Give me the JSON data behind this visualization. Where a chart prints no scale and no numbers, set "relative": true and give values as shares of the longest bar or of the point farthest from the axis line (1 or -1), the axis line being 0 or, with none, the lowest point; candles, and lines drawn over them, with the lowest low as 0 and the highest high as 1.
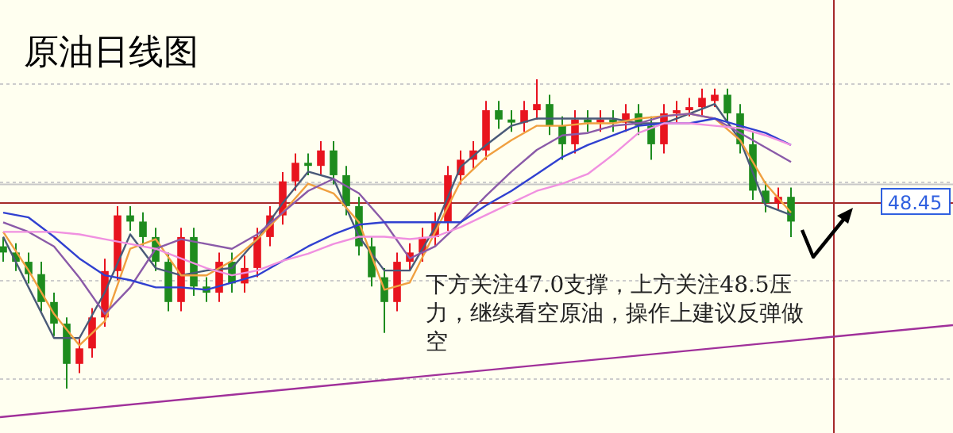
{
  "chart_data": [
    {
      "type": "candlestick",
      "title": "原油日线图",
      "relative": true,
      "grid": "y",
      "categories": [
        null,
        null,
        null,
        null,
        null,
        null,
        null,
        null,
        null,
        null,
        null,
        null,
        null,
        null,
        null,
        null,
        null,
        null,
        null,
        null,
        null,
        null,
        null,
        null,
        null,
        null,
        null,
        null,
        null,
        null,
        null,
        null,
        null,
        null,
        null,
        null,
        null,
        null,
        null,
        null,
        null,
        null,
        null,
        null,
        null,
        null,
        null,
        null,
        null,
        null,
        null,
        null,
        null,
        null,
        null,
        null,
        null,
        null,
        null,
        null,
        null,
        null,
        null
      ],
      "ohlc": [
        [
          0.46,
          0.49,
          0.41,
          0.44
        ],
        [
          0.44,
          0.47,
          0.38,
          0.41
        ],
        [
          0.41,
          0.44,
          0.34,
          0.37
        ],
        [
          0.37,
          0.41,
          0.25,
          0.28
        ],
        [
          0.28,
          0.31,
          0.17,
          0.21
        ],
        [
          0.21,
          0.23,
          0,
          0.08
        ],
        [
          0.08,
          0.16,
          0.05,
          0.13
        ],
        [
          0.13,
          0.26,
          0.1,
          0.23
        ],
        [
          0.23,
          0.42,
          0.2,
          0.38
        ],
        [
          0.38,
          0.59,
          0.35,
          0.56
        ],
        [
          0.56,
          0.59,
          0.51,
          0.54
        ],
        [
          0.54,
          0.57,
          0.46,
          0.49
        ],
        [
          0.49,
          0.52,
          0.38,
          0.41
        ],
        [
          0.41,
          0.44,
          0.25,
          0.28
        ],
        [
          0.28,
          0.52,
          0.25,
          0.49
        ],
        [
          0.49,
          0.52,
          0.3,
          0.33
        ],
        [
          0.33,
          0.36,
          0.28,
          0.31
        ],
        [
          0.31,
          0.44,
          0.28,
          0.41
        ],
        [
          0.41,
          0.44,
          0.31,
          0.34
        ],
        [
          0.34,
          0.43,
          0.31,
          0.39
        ],
        [
          0.39,
          0.52,
          0.36,
          0.49
        ],
        [
          0.49,
          0.59,
          0.46,
          0.56
        ],
        [
          0.56,
          0.7,
          0.53,
          0.67
        ],
        [
          0.67,
          0.76,
          0.64,
          0.73
        ],
        [
          0.73,
          0.76,
          0.69,
          0.72
        ],
        [
          0.72,
          0.8,
          0.69,
          0.77
        ],
        [
          0.77,
          0.8,
          0.66,
          0.69
        ],
        [
          0.69,
          0.72,
          0.56,
          0.59
        ],
        [
          0.59,
          0.62,
          0.43,
          0.46
        ],
        [
          0.46,
          0.49,
          0.33,
          0.36
        ],
        [
          0.36,
          0.39,
          0.18,
          0.28
        ],
        [
          0.28,
          0.44,
          0.25,
          0.41
        ],
        [
          0.41,
          0.47,
          0.38,
          0.44
        ],
        [
          0.44,
          0.52,
          0.41,
          0.49
        ],
        [
          0.49,
          0.57,
          0.46,
          0.54
        ],
        [
          0.54,
          0.72,
          0.51,
          0.69
        ],
        [
          0.69,
          0.77,
          0.66,
          0.74
        ],
        [
          0.74,
          0.8,
          0.71,
          0.77
        ],
        [
          0.77,
          0.93,
          0.74,
          0.9
        ],
        [
          0.9,
          0.93,
          0.84,
          0.87
        ],
        [
          0.87,
          0.9,
          0.83,
          0.86
        ],
        [
          0.86,
          0.93,
          0.83,
          0.9
        ],
        [
          0.9,
          1.0,
          0.87,
          0.92
        ],
        [
          0.92,
          0.95,
          0.82,
          0.85
        ],
        [
          0.85,
          0.88,
          0.74,
          0.79
        ],
        [
          0.79,
          0.9,
          0.76,
          0.87
        ],
        [
          0.87,
          0.9,
          0.83,
          0.86
        ],
        [
          0.86,
          0.9,
          0.83,
          0.87
        ],
        [
          0.87,
          0.9,
          0.83,
          0.86
        ],
        [
          0.86,
          0.92,
          0.83,
          0.89
        ],
        [
          0.89,
          0.92,
          0.82,
          0.85
        ],
        [
          0.85,
          0.88,
          0.74,
          0.79
        ],
        [
          0.79,
          0.92,
          0.76,
          0.89
        ],
        [
          0.89,
          0.93,
          0.86,
          0.9
        ],
        [
          0.9,
          0.94,
          0.88,
          0.91
        ],
        [
          0.91,
          0.97,
          0.88,
          0.94
        ],
        [
          0.93,
          0.97,
          0.91,
          0.95
        ],
        [
          0.95,
          0.97,
          0.86,
          0.89
        ],
        [
          0.89,
          0.92,
          0.76,
          0.79
        ],
        [
          0.79,
          0.83,
          0.61,
          0.64
        ],
        [
          0.64,
          0.67,
          0.57,
          0.6
        ],
        [
          0.6,
          0.65,
          0.58,
          0.62
        ],
        [
          0.62,
          0.65,
          0.49,
          0.54
        ]
      ],
      "ref_lines": [
        {
          "axis": "y",
          "value": 0.6,
          "color": "#a52a2a"
        },
        {
          "axis": "y",
          "value": 0.66,
          "color": "#c8c8c8"
        }
      ],
      "annotations": [
        "下方关注47.0支撑，上方关注48.5压力，继续看空原油，操作上建议反弹做空",
        "48.45"
      ]
    },
    {
      "type": "line",
      "relative": true,
      "categories": [
        null,
        null,
        null,
        null,
        null,
        null,
        null,
        null,
        null,
        null,
        null,
        null,
        null,
        null,
        null,
        null,
        null,
        null,
        null,
        null,
        null,
        null,
        null,
        null,
        null,
        null,
        null,
        null,
        null,
        null,
        null,
        null
      ],
      "series": [
        {
          "color": "#4a5a78",
          "values": [
            0.45,
            0.24,
            0.03,
            0.03,
            0.22,
            0.46,
            0.32,
            0.29,
            0.31,
            0.32,
            0.44,
            0.59,
            0.72,
            0.69,
            0.45,
            0.31,
            0.31,
            0.49,
            0.74,
            0.83,
            0.91,
            0.94,
            0.94,
            0.94,
            0.94,
            0.92,
            0.92,
            0.96,
            1,
            0.85,
            0.58,
            0.54
          ]
        },
        {
          "color": "#f0a040",
          "values": [
            0.47,
            0.31,
            0.13,
            0,
            0.1,
            0.4,
            0.44,
            0.29,
            0.29,
            0.35,
            0.44,
            0.55,
            0.67,
            0.63,
            0.51,
            0.23,
            0.26,
            0.47,
            0.68,
            0.78,
            0.85,
            0.91,
            0.91,
            0.92,
            0.92,
            0.94,
            0.95,
            0.96,
            0.94,
            0.85,
            0.67,
            0.55
          ]
        },
        {
          "color": "#8a5aa8",
          "values": [
            0.51,
            0.47,
            0.41,
            0.28,
            0.13,
            0.24,
            0.4,
            0.44,
            0.42,
            0.4,
            0.46,
            0.55,
            0.64,
            0.69,
            0.63,
            0.51,
            0.36,
            0.41,
            0.51,
            0.62,
            0.72,
            0.81,
            0.87,
            0.88,
            0.91,
            0.92,
            0.95,
            0.96,
            0.94,
            0.88,
            0.82,
            0.76
          ]
        },
        {
          "color": "#3040d0",
          "values": [
            0.55,
            0.53,
            0.45,
            0.36,
            0.29,
            0.27,
            0.24,
            0.24,
            0.23,
            0.26,
            0.29,
            0.35,
            0.41,
            0.46,
            0.5,
            0.51,
            0.51,
            0.51,
            0.51,
            0.58,
            0.64,
            0.71,
            0.78,
            0.83,
            0.87,
            0.91,
            0.92,
            0.92,
            0.94,
            0.91,
            0.88,
            0.83
          ]
        },
        {
          "color": "#f090e0",
          "values": [
            0.47,
            0.47,
            0.47,
            0.46,
            0.44,
            0.42,
            0.4,
            0.36,
            0.32,
            0.29,
            0.31,
            0.35,
            0.38,
            0.42,
            0.45,
            0.45,
            0.44,
            0.45,
            0.49,
            0.54,
            0.59,
            0.64,
            0.67,
            0.71,
            0.79,
            0.88,
            0.92,
            0.92,
            0.91,
            0.9,
            0.87,
            0.83
          ]
        }
      ]
    },
    {
      "type": "line",
      "relative": true,
      "categories": [
        null,
        null
      ],
      "series": [
        {
          "color": "#a0309a",
          "values": [
            0,
            1
          ]
        }
      ]
    }
  ]
}
